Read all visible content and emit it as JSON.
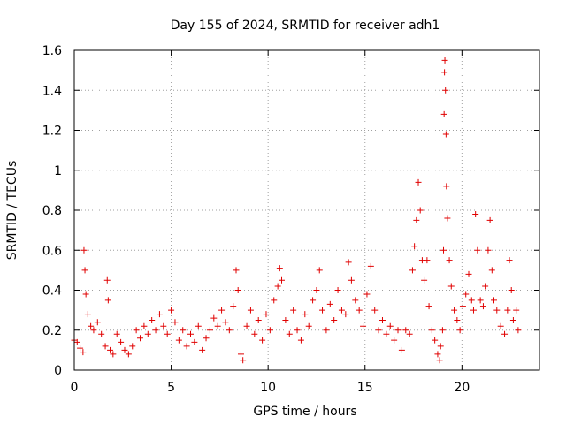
{
  "chart_data": {
    "type": "scatter",
    "title": "Day 155 of 2024, SRMTID for receiver adh1",
    "xlabel": "GPS time / hours",
    "ylabel": "SRMTID / TECUs",
    "xlim": [
      0,
      24
    ],
    "ylim": [
      0,
      1.6
    ],
    "x_ticks": [
      0,
      5,
      10,
      15,
      20
    ],
    "x_tick_labels": [
      "0",
      "5",
      "10",
      "15",
      "20"
    ],
    "y_ticks": [
      0,
      0.2,
      0.4,
      0.6,
      0.8,
      1.0,
      1.2,
      1.4,
      1.6
    ],
    "y_tick_labels": [
      "0",
      "0.2",
      "0.4",
      "0.6",
      "0.8",
      "1",
      "1.2",
      "1.4",
      "1.6"
    ],
    "grid": true,
    "marker": "+",
    "marker_color": "#e00000",
    "series": [
      {
        "name": "adh1",
        "points": [
          [
            0.0,
            0.15
          ],
          [
            0.15,
            0.14
          ],
          [
            0.3,
            0.11
          ],
          [
            0.45,
            0.09
          ],
          [
            0.5,
            0.6
          ],
          [
            0.55,
            0.5
          ],
          [
            0.6,
            0.38
          ],
          [
            0.7,
            0.28
          ],
          [
            0.85,
            0.22
          ],
          [
            1.0,
            0.2
          ],
          [
            1.2,
            0.24
          ],
          [
            1.4,
            0.18
          ],
          [
            1.6,
            0.12
          ],
          [
            1.7,
            0.45
          ],
          [
            1.75,
            0.35
          ],
          [
            1.85,
            0.1
          ],
          [
            2.0,
            0.08
          ],
          [
            2.2,
            0.18
          ],
          [
            2.4,
            0.14
          ],
          [
            2.6,
            0.1
          ],
          [
            2.8,
            0.08
          ],
          [
            3.0,
            0.12
          ],
          [
            3.2,
            0.2
          ],
          [
            3.4,
            0.16
          ],
          [
            3.6,
            0.22
          ],
          [
            3.8,
            0.18
          ],
          [
            4.0,
            0.25
          ],
          [
            4.2,
            0.2
          ],
          [
            4.4,
            0.28
          ],
          [
            4.6,
            0.22
          ],
          [
            4.8,
            0.18
          ],
          [
            5.0,
            0.3
          ],
          [
            5.2,
            0.24
          ],
          [
            5.4,
            0.15
          ],
          [
            5.6,
            0.2
          ],
          [
            5.8,
            0.12
          ],
          [
            6.0,
            0.18
          ],
          [
            6.2,
            0.14
          ],
          [
            6.4,
            0.22
          ],
          [
            6.6,
            0.1
          ],
          [
            6.8,
            0.16
          ],
          [
            7.0,
            0.2
          ],
          [
            7.2,
            0.26
          ],
          [
            7.4,
            0.22
          ],
          [
            7.6,
            0.3
          ],
          [
            7.8,
            0.24
          ],
          [
            8.0,
            0.2
          ],
          [
            8.2,
            0.32
          ],
          [
            8.35,
            0.5
          ],
          [
            8.45,
            0.4
          ],
          [
            8.6,
            0.08
          ],
          [
            8.7,
            0.05
          ],
          [
            8.9,
            0.22
          ],
          [
            9.1,
            0.3
          ],
          [
            9.3,
            0.18
          ],
          [
            9.5,
            0.25
          ],
          [
            9.7,
            0.15
          ],
          [
            9.9,
            0.28
          ],
          [
            10.1,
            0.2
          ],
          [
            10.3,
            0.35
          ],
          [
            10.5,
            0.42
          ],
          [
            10.6,
            0.51
          ],
          [
            10.7,
            0.45
          ],
          [
            10.9,
            0.25
          ],
          [
            11.1,
            0.18
          ],
          [
            11.3,
            0.3
          ],
          [
            11.5,
            0.2
          ],
          [
            11.7,
            0.15
          ],
          [
            11.9,
            0.28
          ],
          [
            12.1,
            0.22
          ],
          [
            12.3,
            0.35
          ],
          [
            12.5,
            0.4
          ],
          [
            12.65,
            0.5
          ],
          [
            12.8,
            0.3
          ],
          [
            13.0,
            0.2
          ],
          [
            13.2,
            0.33
          ],
          [
            13.4,
            0.25
          ],
          [
            13.6,
            0.4
          ],
          [
            13.8,
            0.3
          ],
          [
            14.0,
            0.28
          ],
          [
            14.15,
            0.54
          ],
          [
            14.3,
            0.45
          ],
          [
            14.5,
            0.35
          ],
          [
            14.7,
            0.3
          ],
          [
            14.9,
            0.22
          ],
          [
            15.1,
            0.38
          ],
          [
            15.3,
            0.52
          ],
          [
            15.5,
            0.3
          ],
          [
            15.7,
            0.2
          ],
          [
            15.9,
            0.25
          ],
          [
            16.1,
            0.18
          ],
          [
            16.3,
            0.22
          ],
          [
            16.5,
            0.15
          ],
          [
            16.7,
            0.2
          ],
          [
            16.9,
            0.1
          ],
          [
            17.1,
            0.2
          ],
          [
            17.3,
            0.18
          ],
          [
            17.45,
            0.5
          ],
          [
            17.55,
            0.62
          ],
          [
            17.65,
            0.75
          ],
          [
            17.75,
            0.94
          ],
          [
            17.85,
            0.8
          ],
          [
            17.95,
            0.55
          ],
          [
            18.05,
            0.45
          ],
          [
            18.2,
            0.55
          ],
          [
            18.3,
            0.32
          ],
          [
            18.45,
            0.2
          ],
          [
            18.6,
            0.15
          ],
          [
            18.75,
            0.08
          ],
          [
            18.85,
            0.05
          ],
          [
            18.9,
            0.12
          ],
          [
            19.0,
            0.2
          ],
          [
            19.05,
            0.6
          ],
          [
            19.08,
            1.28
          ],
          [
            19.1,
            1.49
          ],
          [
            19.12,
            1.55
          ],
          [
            19.15,
            1.4
          ],
          [
            19.18,
            1.18
          ],
          [
            19.2,
            0.92
          ],
          [
            19.25,
            0.76
          ],
          [
            19.35,
            0.55
          ],
          [
            19.45,
            0.42
          ],
          [
            19.6,
            0.3
          ],
          [
            19.75,
            0.25
          ],
          [
            19.9,
            0.2
          ],
          [
            20.05,
            0.32
          ],
          [
            20.2,
            0.38
          ],
          [
            20.35,
            0.48
          ],
          [
            20.5,
            0.35
          ],
          [
            20.6,
            0.3
          ],
          [
            20.7,
            0.78
          ],
          [
            20.8,
            0.6
          ],
          [
            20.95,
            0.35
          ],
          [
            21.1,
            0.32
          ],
          [
            21.2,
            0.42
          ],
          [
            21.35,
            0.6
          ],
          [
            21.45,
            0.75
          ],
          [
            21.55,
            0.5
          ],
          [
            21.65,
            0.35
          ],
          [
            21.8,
            0.3
          ],
          [
            22.0,
            0.22
          ],
          [
            22.2,
            0.18
          ],
          [
            22.35,
            0.3
          ],
          [
            22.45,
            0.55
          ],
          [
            22.55,
            0.4
          ],
          [
            22.65,
            0.25
          ],
          [
            22.8,
            0.3
          ],
          [
            22.9,
            0.2
          ]
        ]
      }
    ]
  }
}
